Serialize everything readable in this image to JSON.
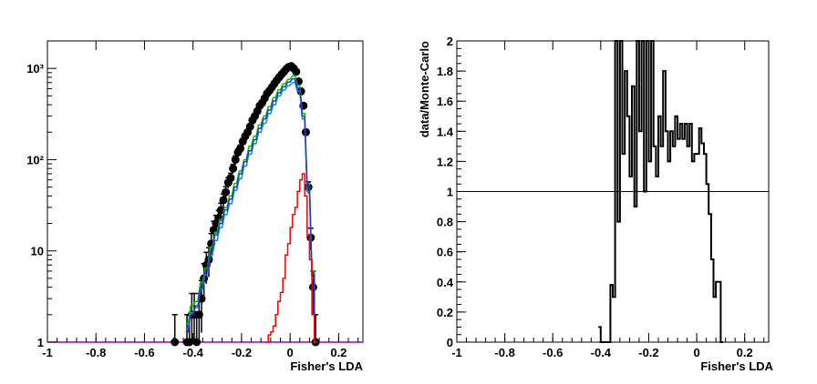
{
  "chart_data": [
    {
      "type": "line",
      "panel": "left",
      "xlabel": "Fisher's LDA",
      "ylabel": "",
      "xlim": [
        -1,
        0.3
      ],
      "ylim": [
        1,
        2000
      ],
      "yscale": "log",
      "grid": false,
      "legend": "none",
      "x_ticks": [
        "-1",
        "-0.8",
        "-0.6",
        "-0.4",
        "-0.2",
        "0",
        "0.2"
      ],
      "x_tick_values": [
        -1,
        -0.8,
        -0.6,
        -0.4,
        -0.2,
        0,
        0.2
      ],
      "y_ticks": [
        "1",
        "10",
        "10²",
        "10³"
      ],
      "y_tick_values": [
        1,
        10,
        100,
        1000
      ],
      "bin_width": 0.01,
      "series": [
        {
          "role": "data points with error bars",
          "color": "#000000",
          "x": [
            -0.475,
            -0.425,
            -0.415,
            -0.405,
            -0.395,
            -0.385,
            -0.375,
            -0.365,
            -0.355,
            -0.345,
            -0.335,
            -0.325,
            -0.315,
            -0.305,
            -0.295,
            -0.285,
            -0.275,
            -0.265,
            -0.255,
            -0.245,
            -0.235,
            -0.225,
            -0.215,
            -0.205,
            -0.195,
            -0.185,
            -0.175,
            -0.165,
            -0.155,
            -0.145,
            -0.135,
            -0.125,
            -0.115,
            -0.105,
            -0.095,
            -0.085,
            -0.075,
            -0.065,
            -0.055,
            -0.045,
            -0.035,
            -0.025,
            -0.015,
            -0.005,
            0.005,
            0.015,
            0.025,
            0.035,
            0.045,
            0.055,
            0.065,
            0.075,
            0.085,
            0.095,
            0.105
          ],
          "y": [
            1,
            1,
            1,
            2,
            2,
            1,
            2,
            3,
            5,
            7,
            8,
            12,
            17,
            20,
            23,
            28,
            36,
            44,
            56,
            63,
            80,
            100,
            120,
            133,
            158,
            180,
            200,
            230,
            270,
            300,
            340,
            390,
            420,
            470,
            530,
            570,
            620,
            680,
            740,
            800,
            860,
            920,
            990,
            1040,
            1060,
            1000,
            920,
            720,
            560,
            390,
            200,
            50,
            14,
            4,
            1
          ]
        },
        {
          "role": "Monte-Carlo total",
          "color": "#00cc00",
          "x": [
            -0.425,
            -0.405,
            -0.385,
            -0.365,
            -0.345,
            -0.325,
            -0.305,
            -0.285,
            -0.265,
            -0.245,
            -0.225,
            -0.205,
            -0.185,
            -0.165,
            -0.145,
            -0.125,
            -0.105,
            -0.085,
            -0.065,
            -0.045,
            -0.025,
            -0.005,
            0.015,
            0.035,
            0.055,
            0.075,
            0.095,
            0.105
          ],
          "y": [
            1.6,
            2.5,
            2.8,
            4.5,
            6.5,
            11,
            16,
            22,
            30,
            40,
            55,
            75,
            100,
            140,
            180,
            240,
            300,
            380,
            480,
            580,
            680,
            760,
            830,
            650,
            320,
            55,
            6,
            1
          ]
        },
        {
          "role": "Monte-Carlo component",
          "color": "#0099cc",
          "x": [
            -0.425,
            -0.405,
            -0.385,
            -0.365,
            -0.345,
            -0.325,
            -0.305,
            -0.285,
            -0.265,
            -0.245,
            -0.225,
            -0.205,
            -0.185,
            -0.165,
            -0.145,
            -0.125,
            -0.105,
            -0.085,
            -0.065,
            -0.045,
            -0.025,
            -0.005,
            0.015,
            0.035,
            0.055,
            0.075,
            0.095,
            0.105
          ],
          "y": [
            1.4,
            2.1,
            2.4,
            3.8,
            5.5,
            9,
            13,
            18,
            25,
            33,
            46,
            62,
            85,
            115,
            150,
            200,
            250,
            320,
            400,
            500,
            580,
            650,
            700,
            560,
            280,
            45,
            5,
            1
          ]
        },
        {
          "role": "Monte-Carlo component",
          "color": "#3333cc",
          "x": [
            -0.425,
            -0.405,
            -0.385,
            -0.365,
            -0.345,
            -0.325,
            -0.305,
            -0.285,
            -0.265,
            -0.245,
            -0.225,
            -0.205,
            -0.185,
            -0.165,
            -0.145,
            -0.125,
            -0.105,
            -0.085,
            -0.065,
            -0.045,
            -0.025,
            -0.005,
            0.015,
            0.035,
            0.055,
            0.075,
            0.095,
            0.105
          ],
          "y": [
            1.3,
            2.0,
            2.5,
            4,
            6,
            10,
            15,
            20,
            28,
            37,
            50,
            70,
            95,
            125,
            165,
            220,
            280,
            350,
            440,
            540,
            630,
            710,
            770,
            610,
            300,
            52,
            5.5,
            1
          ]
        },
        {
          "role": "Monte-Carlo component",
          "color": "#ff0000",
          "x": [
            -0.095,
            -0.085,
            -0.075,
            -0.065,
            -0.055,
            -0.045,
            -0.035,
            -0.025,
            -0.015,
            -0.005,
            0.005,
            0.015,
            0.025,
            0.035,
            0.045,
            0.055,
            0.065,
            0.075,
            0.085,
            0.095,
            0.105
          ],
          "y": [
            1,
            1.2,
            1.3,
            1.5,
            2,
            2.8,
            3.5,
            5,
            9,
            12,
            18,
            25,
            30,
            45,
            60,
            70,
            40,
            15,
            8,
            2,
            1
          ]
        }
      ]
    },
    {
      "type": "line",
      "panel": "right",
      "xlabel": "Fisher's LDA",
      "ylabel": "data/Monte-Carlo",
      "xlim": [
        -1,
        0.3
      ],
      "ylim": [
        0,
        2
      ],
      "grid": false,
      "legend": "none",
      "reference_line": 1,
      "x_ticks": [
        "-1",
        "-0.8",
        "-0.6",
        "-0.4",
        "-0.2",
        "0",
        "0.2"
      ],
      "x_tick_values": [
        -1,
        -0.8,
        -0.6,
        -0.4,
        -0.2,
        0,
        0.2
      ],
      "y_ticks": [
        "0",
        "0.2",
        "0.4",
        "0.6",
        "0.8",
        "1",
        "1.2",
        "1.4",
        "1.6",
        "1.8",
        "2"
      ],
      "y_tick_values": [
        0,
        0.2,
        0.4,
        0.6,
        0.8,
        1,
        1.2,
        1.4,
        1.6,
        1.8,
        2
      ],
      "bin_width": 0.01,
      "series": [
        {
          "role": "ratio",
          "color": "#000000",
          "x": [
            -0.405,
            -0.395,
            -0.385,
            -0.375,
            -0.365,
            -0.355,
            -0.345,
            -0.335,
            -0.325,
            -0.315,
            -0.305,
            -0.295,
            -0.285,
            -0.275,
            -0.265,
            -0.255,
            -0.245,
            -0.235,
            -0.225,
            -0.215,
            -0.205,
            -0.195,
            -0.185,
            -0.175,
            -0.165,
            -0.155,
            -0.145,
            -0.135,
            -0.125,
            -0.115,
            -0.105,
            -0.095,
            -0.085,
            -0.075,
            -0.065,
            -0.055,
            -0.045,
            -0.035,
            -0.025,
            -0.015,
            -0.005,
            0.005,
            0.015,
            0.025,
            0.035,
            0.045,
            0.055,
            0.065,
            0.075,
            0.085,
            0.095,
            0.105
          ],
          "y": [
            0.1,
            0,
            0,
            0,
            0,
            0.38,
            0.3,
            2,
            0.8,
            2,
            1.25,
            1.8,
            1.5,
            1.1,
            1.7,
            0.9,
            2,
            1.4,
            2,
            1.0,
            2,
            1.2,
            2,
            1.3,
            1.1,
            1.5,
            1.3,
            1.8,
            1.4,
            1.2,
            1.4,
            1.3,
            1.5,
            1.35,
            1.45,
            1.35,
            1.45,
            1.3,
            1.45,
            1.2,
            1.25,
            1.25,
            1.42,
            1.32,
            1.25,
            1.05,
            0.85,
            0.55,
            0.3,
            0.4,
            0.4,
            0
          ]
        }
      ]
    }
  ]
}
